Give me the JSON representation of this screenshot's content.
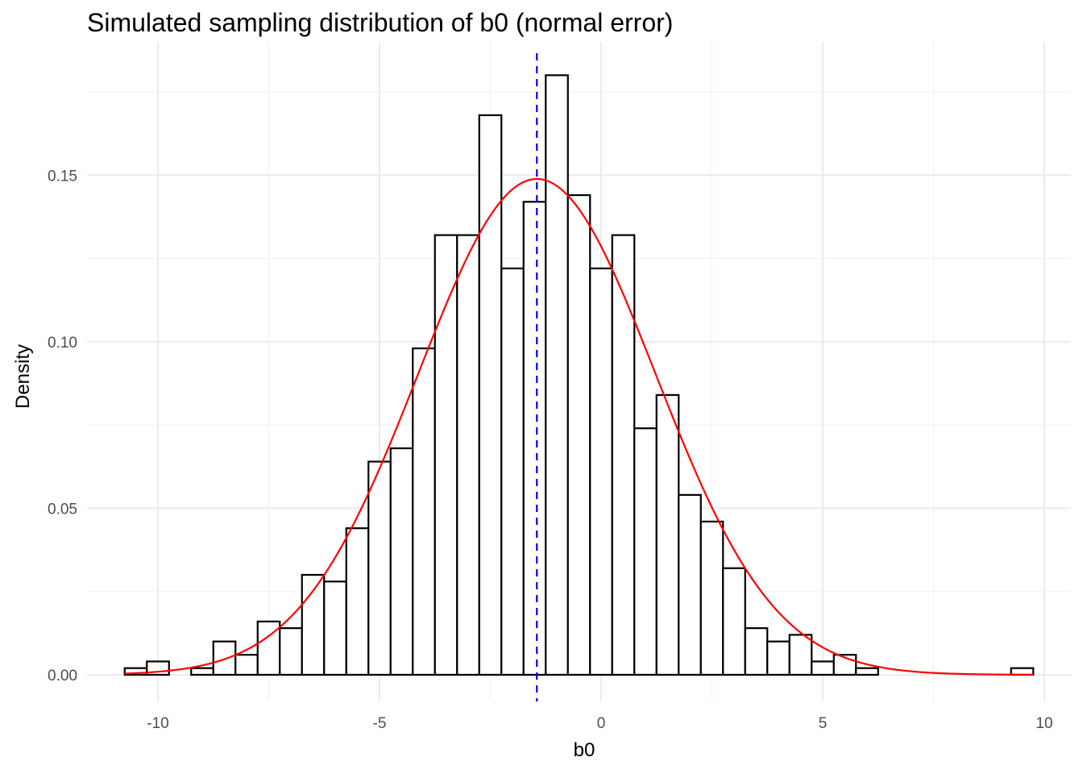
{
  "chart_data": {
    "type": "bar",
    "title": "Simulated sampling distribution of b0 (normal error)",
    "xlabel": "b0",
    "ylabel": "Density",
    "xlim": [
      -11.6,
      10.6
    ],
    "ylim": [
      -0.008,
      0.19
    ],
    "x_ticks": [
      -10,
      -5,
      0,
      5,
      10
    ],
    "x_tick_labels": [
      "-10",
      "-5",
      "0",
      "5",
      "10"
    ],
    "y_ticks": [
      0.0,
      0.05,
      0.1,
      0.15
    ],
    "y_tick_labels": [
      "0.00",
      "0.05",
      "0.10",
      "0.15"
    ],
    "grid": true,
    "histogram": {
      "bin_start": -10.75,
      "bin_width": 0.5,
      "density": [
        0.002,
        0.004,
        0.0,
        0.002,
        0.01,
        0.006,
        0.016,
        0.014,
        0.03,
        0.028,
        0.044,
        0.064,
        0.068,
        0.098,
        0.132,
        0.132,
        0.168,
        0.122,
        0.142,
        0.18,
        0.144,
        0.122,
        0.132,
        0.074,
        0.084,
        0.054,
        0.046,
        0.032,
        0.014,
        0.01,
        0.012,
        0.004,
        0.006,
        0.002,
        0.0,
        0.0,
        0.0,
        0.0,
        0.0,
        0.0,
        0.002
      ],
      "fill": "#ffffff",
      "outline": "#000000"
    },
    "normal_curve": {
      "mean": -1.45,
      "sd": 2.68,
      "x_range": [
        -10.75,
        9.75
      ],
      "color": "#ff0000"
    },
    "mean_line": {
      "x": -1.45,
      "color": "#0000ff",
      "style": "dashed"
    }
  }
}
